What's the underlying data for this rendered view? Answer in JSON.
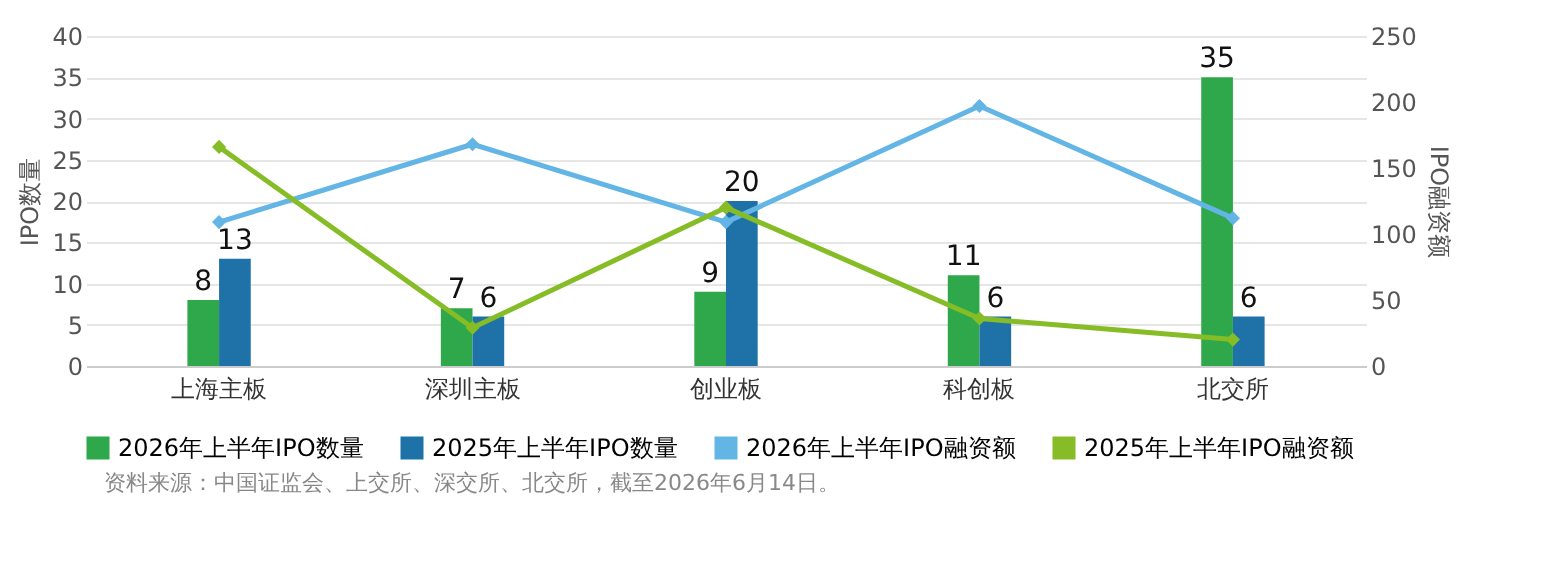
{
  "chart_data": {
    "type": "bar",
    "ylabel": "IPO数量",
    "y2label": "IPO融资额",
    "categories": [
      "上海主板",
      "深圳主板",
      "创业板",
      "科创板",
      "北交所"
    ],
    "series": [
      {
        "name": "2026年上半年IPO数量",
        "type": "bar",
        "color": "#2ea84a",
        "values": [
          8,
          7,
          9,
          11,
          35
        ],
        "value_labels": [
          "8",
          "7",
          "9",
          "11",
          "35"
        ]
      },
      {
        "name": "2025年上半年IPO数量",
        "type": "bar",
        "color": "#1f72a8",
        "values": [
          13,
          6,
          20,
          6,
          6
        ],
        "value_labels": [
          "13",
          "6",
          "20",
          "6",
          "6"
        ]
      },
      {
        "name": "2026年上半年IPO融资额",
        "type": "line",
        "axis": "y2",
        "color": "#62b5e5",
        "values": [
          109,
          168,
          109,
          197,
          112
        ]
      },
      {
        "name": "2025年上半年IPO融资额",
        "type": "line",
        "axis": "y2",
        "color": "#86bc25",
        "values": [
          166,
          29,
          120,
          36,
          20
        ]
      }
    ],
    "ylim": [
      0,
      40
    ],
    "yticks": [
      0,
      5,
      10,
      15,
      20,
      25,
      30,
      35,
      40
    ],
    "y2lim": [
      0,
      250
    ],
    "y2ticks": [
      0,
      50,
      100,
      150,
      200,
      250
    ],
    "grid": "y",
    "legend": "bottom",
    "marker": "diamond",
    "annotations": [
      "资料来源：中国证监会、上交所、深交所、北交所，截至2026年6月14日。"
    ]
  }
}
